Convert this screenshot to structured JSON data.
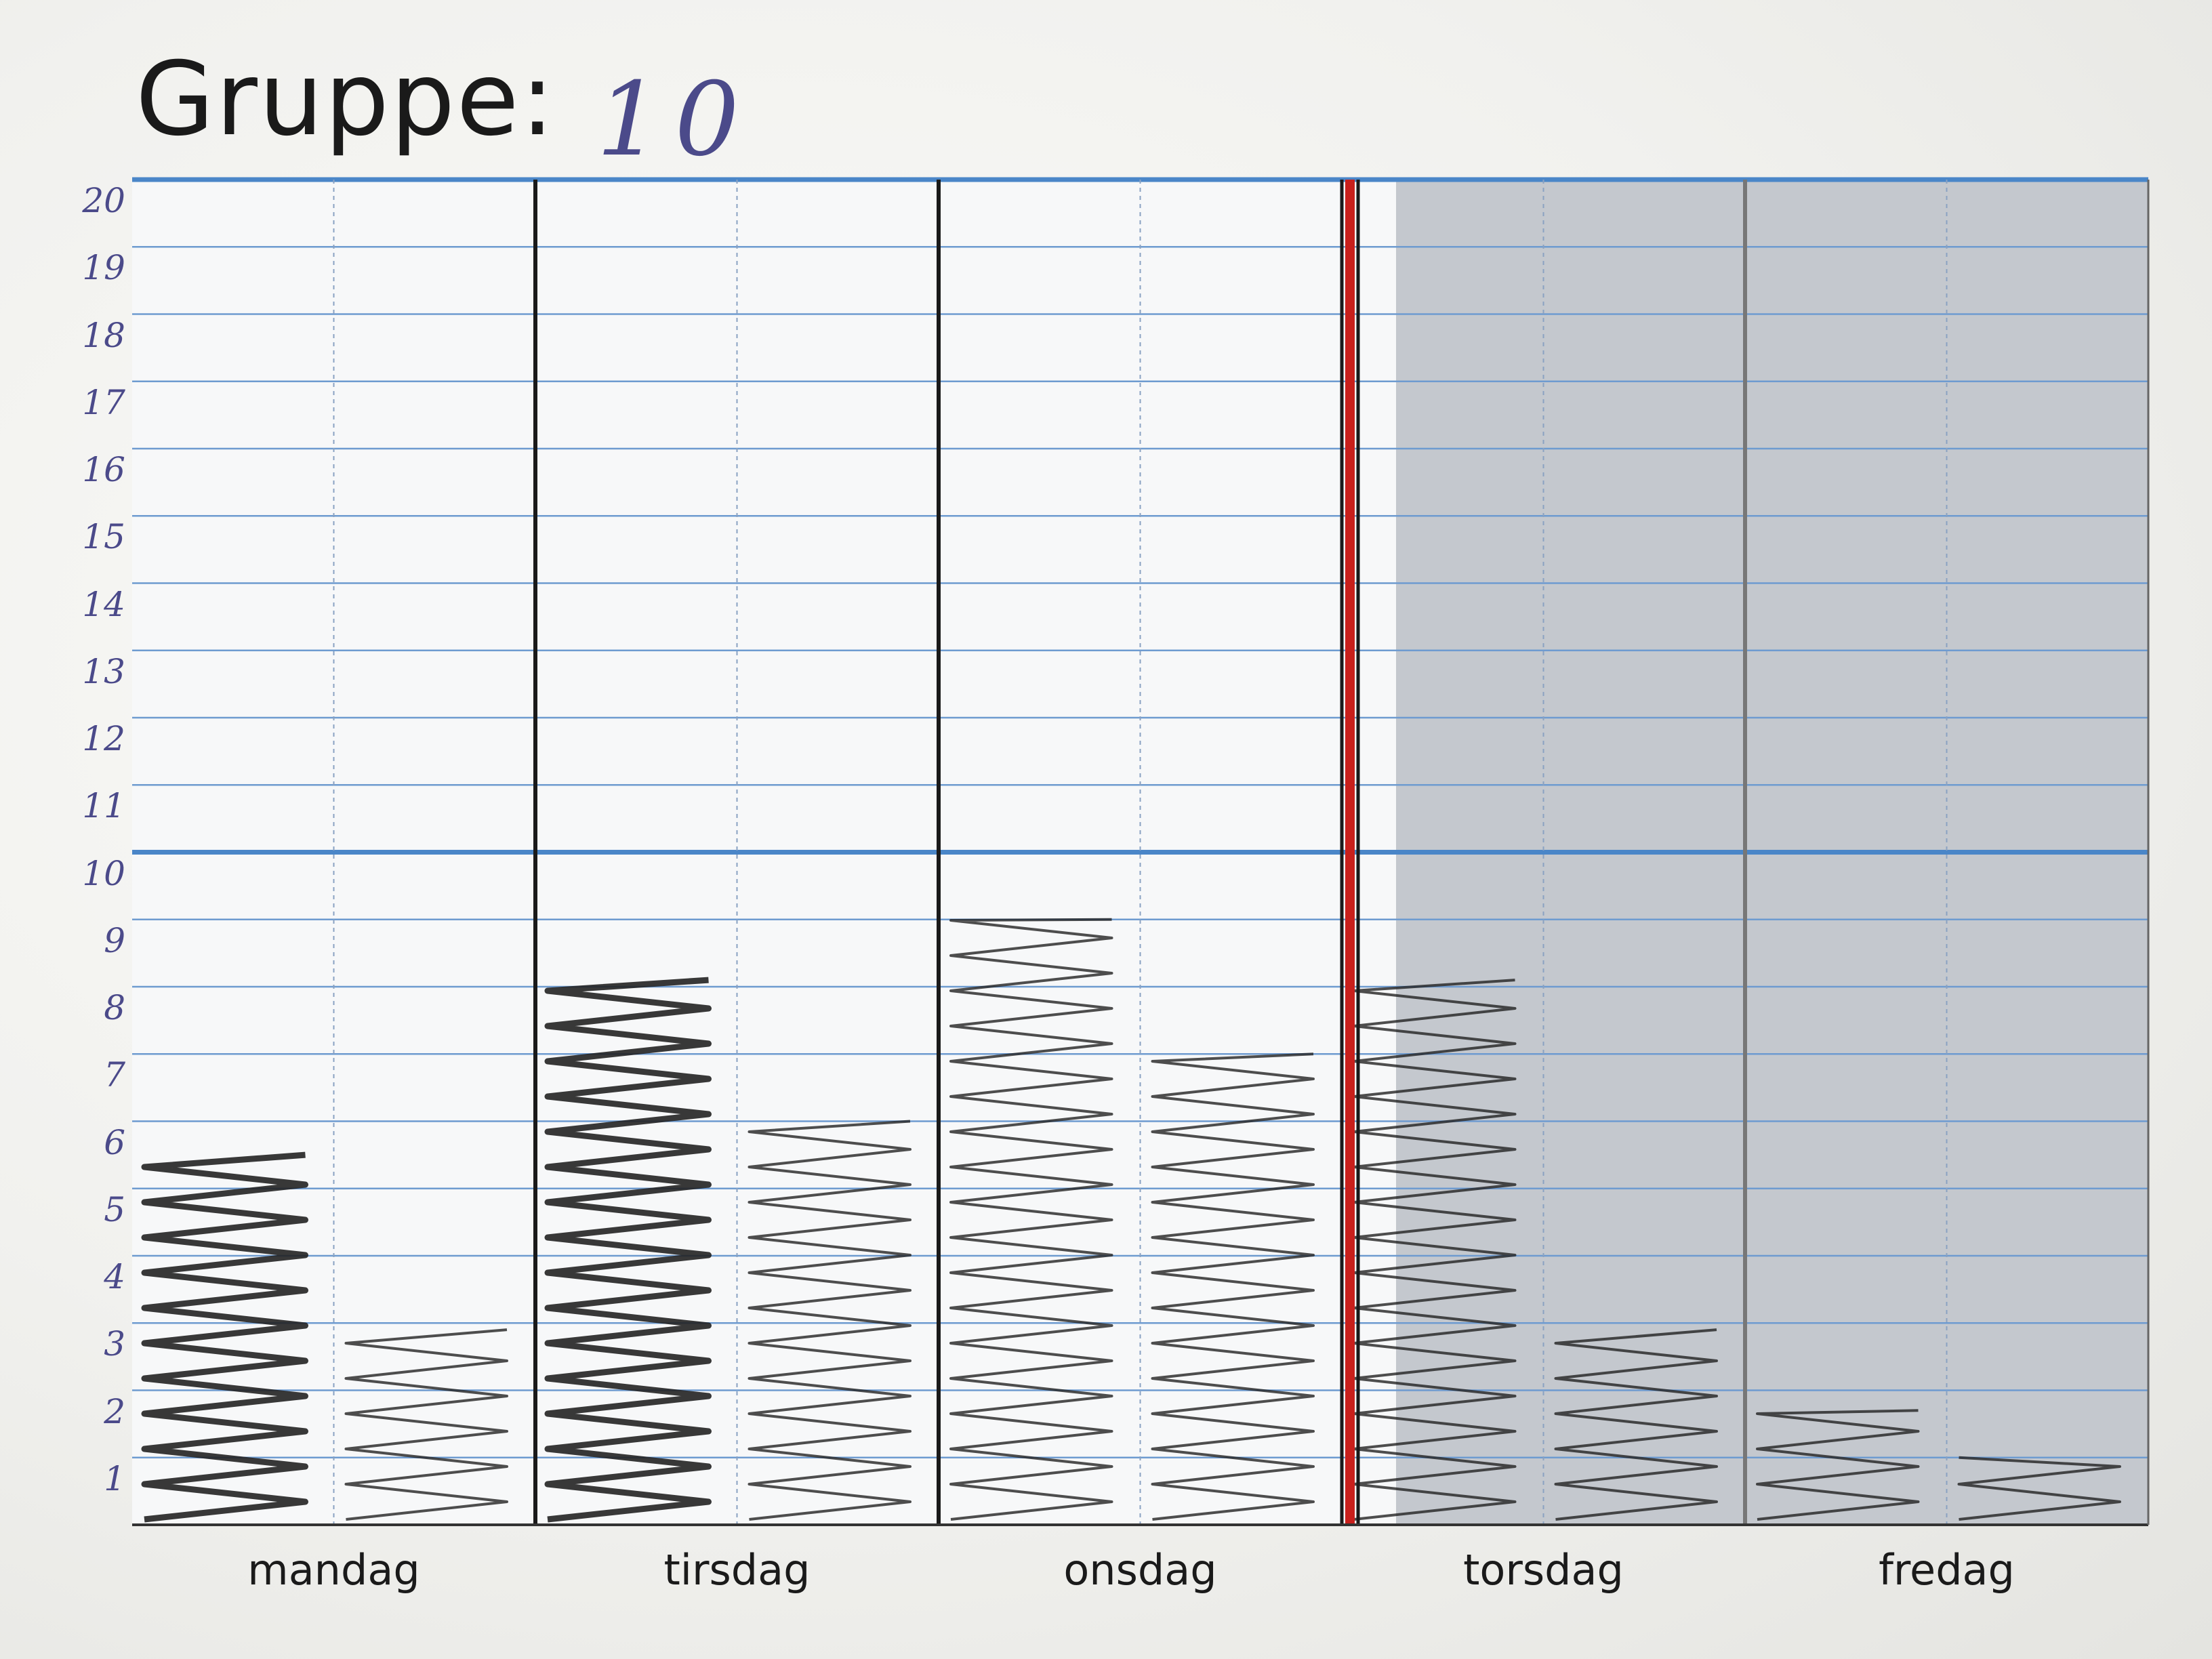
{
  "title": "Gruppe:",
  "group_number": "10",
  "chart_data": {
    "type": "bar",
    "title": "Gruppe: 10",
    "xlabel": "",
    "ylabel": "",
    "ylim": [
      0,
      20
    ],
    "y_ticks": [
      "1",
      "2",
      "3",
      "4",
      "5",
      "6",
      "7",
      "8",
      "9",
      "10",
      "11",
      "12",
      "13",
      "14",
      "15",
      "16",
      "17",
      "18",
      "19",
      "20"
    ],
    "categories": [
      "mandag",
      "tirsdag",
      "onsdag",
      "torsdag",
      "fredag"
    ],
    "sub_columns_per_day": 2,
    "series": [
      {
        "values": [
          5.5,
          8.1,
          9.0,
          8.1,
          1.7
        ]
      },
      {
        "values": [
          2.9,
          6.0,
          7.0,
          2.9,
          1.0
        ]
      }
    ],
    "shaded_days": [
      "torsdag",
      "fredag"
    ],
    "grid": true,
    "colors": {
      "gridline": "#6e9bd0",
      "major_line": "#4a86c8",
      "day_divider": "#1a1a1a",
      "red_divider": "#c8201c",
      "shade": "#c4c8ce",
      "scribble": "#222222",
      "handwriting": "#4b4a8a"
    }
  }
}
